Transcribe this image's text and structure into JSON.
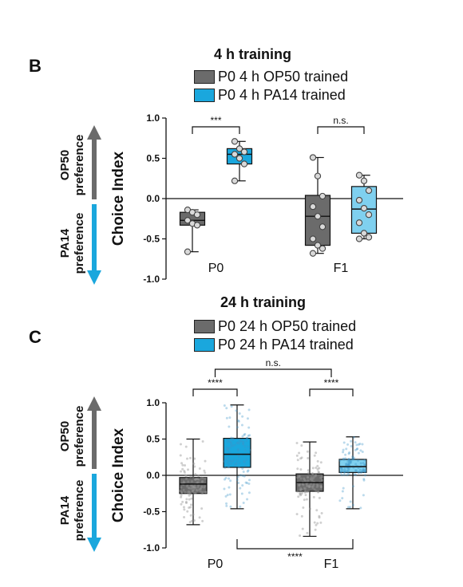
{
  "panel_b": {
    "letter": "B",
    "title": "4 h training",
    "legend": [
      {
        "label": "P0 4 h OP50 trained",
        "color": "#6b6b6b"
      },
      {
        "label": "P0 4 h PA14 trained",
        "color": "#1aa7dd"
      }
    ]
  },
  "panel_c": {
    "letter": "C",
    "title": "24 h training",
    "legend": [
      {
        "label": "P0 24 h OP50 trained",
        "color": "#6b6b6b"
      },
      {
        "label": "P0 24 h PA14 trained",
        "color": "#1aa7dd"
      }
    ]
  },
  "preference_arrow": {
    "up_label_1": "OP50",
    "up_label_2": "preference",
    "down_label_1": "PA14",
    "down_label_2": "preference",
    "up_color": "#6b6b6b",
    "down_color": "#1aa7dd"
  },
  "chart_data": [
    {
      "type": "box",
      "title": "4 h training",
      "ylabel": "Choice Index",
      "ylim": [
        -1.0,
        1.0
      ],
      "yticks": [
        "1.0",
        "0.5",
        "0.0",
        "-0.5",
        "-1.0"
      ],
      "categories": [
        "P0",
        "F1"
      ],
      "series": [
        {
          "name": "P0 4 h OP50 trained",
          "color": "#6b6b6b",
          "fill_light": "#6b6b6b",
          "boxes": [
            {
              "category": "P0",
              "min": -0.66,
              "q1": -0.33,
              "median": -0.27,
              "q3": -0.17,
              "max": -0.14,
              "points": [
                -0.14,
                -0.17,
                -0.2,
                -0.27,
                -0.31,
                -0.33,
                -0.66
              ]
            },
            {
              "category": "F1",
              "min": -0.68,
              "q1": -0.58,
              "median": -0.22,
              "q3": 0.04,
              "max": 0.51,
              "points": [
                0.51,
                0.28,
                0.03,
                -0.1,
                -0.22,
                -0.35,
                -0.5,
                -0.58,
                -0.62,
                -0.68
              ]
            }
          ]
        },
        {
          "name": "P0 4 h PA14 trained",
          "color": "#1aa7dd",
          "fill_light": "#7fd0ef",
          "boxes": [
            {
              "category": "P0",
              "min": 0.22,
              "q1": 0.43,
              "median": 0.55,
              "q3": 0.62,
              "max": 0.71,
              "points": [
                0.71,
                0.62,
                0.58,
                0.55,
                0.5,
                0.43,
                0.22
              ]
            },
            {
              "category": "F1",
              "min": -0.5,
              "q1": -0.43,
              "median": -0.13,
              "q3": 0.15,
              "max": 0.29,
              "points": [
                0.29,
                0.22,
                0.1,
                -0.02,
                -0.12,
                -0.2,
                -0.3,
                -0.43,
                -0.48,
                -0.5
              ]
            }
          ]
        }
      ],
      "annotations": [
        {
          "text": "***",
          "between": [
            "P0 OP50",
            "P0 PA14"
          ]
        },
        {
          "text": "n.s.",
          "between": [
            "F1 OP50",
            "F1 PA14"
          ]
        }
      ]
    },
    {
      "type": "box",
      "title": "24 h training",
      "ylabel": "Choice Index",
      "ylim": [
        -1.0,
        1.0
      ],
      "yticks": [
        "1.0",
        "0.5",
        "0.0",
        "-0.5",
        "-1.0"
      ],
      "categories": [
        "P0",
        "F1"
      ],
      "series": [
        {
          "name": "P0 24 h OP50 trained",
          "color": "#6b6b6b",
          "fill_light": "#6b6b6b",
          "boxes": [
            {
              "category": "P0",
              "min": -0.68,
              "q1": -0.25,
              "median": -0.12,
              "q3": -0.03,
              "max": 0.5
            },
            {
              "category": "F1",
              "min": -0.84,
              "q1": -0.22,
              "median": -0.1,
              "q3": 0.02,
              "max": 0.46
            }
          ]
        },
        {
          "name": "P0 24 h PA14 trained",
          "color": "#1aa7dd",
          "fill_light": "#7fd0ef",
          "boxes": [
            {
              "category": "P0",
              "min": -0.46,
              "q1": 0.11,
              "median": 0.29,
              "q3": 0.51,
              "max": 0.97
            },
            {
              "category": "F1",
              "min": -0.46,
              "q1": 0.04,
              "median": 0.12,
              "q3": 0.22,
              "max": 0.53
            }
          ]
        }
      ],
      "annotations": [
        {
          "text": "****",
          "between": [
            "P0 OP50",
            "P0 PA14"
          ]
        },
        {
          "text": "****",
          "between": [
            "F1 OP50",
            "F1 PA14"
          ]
        },
        {
          "text": "n.s.",
          "between": [
            "P0",
            "F1"
          ]
        },
        {
          "text": "****",
          "between": [
            "P0",
            "F1"
          ]
        }
      ]
    }
  ]
}
